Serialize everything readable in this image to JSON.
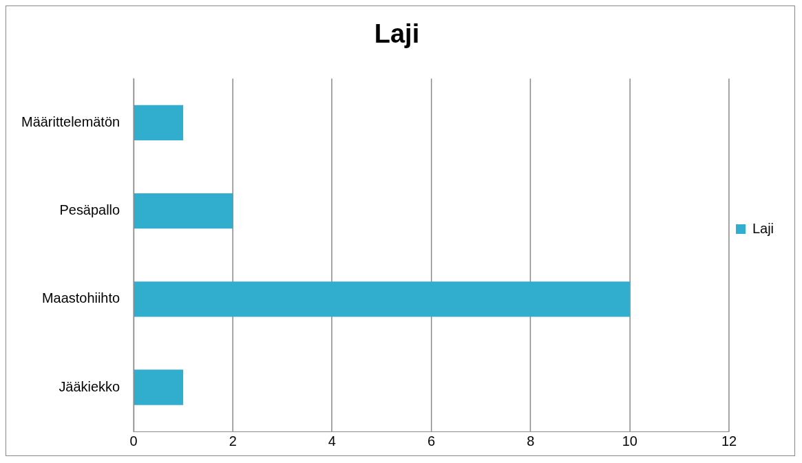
{
  "chart_data": {
    "type": "bar",
    "title": "Laji",
    "orientation": "horizontal",
    "categories": [
      "Määrittelemätön",
      "Pesäpallo",
      "Maastohiihto",
      "Jääkiekko"
    ],
    "series": [
      {
        "name": "Laji",
        "color": "#31aece",
        "values": [
          1,
          2,
          10,
          1
        ]
      }
    ],
    "xlim": [
      0,
      12
    ],
    "xticks": [
      0,
      2,
      4,
      6,
      8,
      10,
      12
    ],
    "grid": "x",
    "legend": "right"
  }
}
